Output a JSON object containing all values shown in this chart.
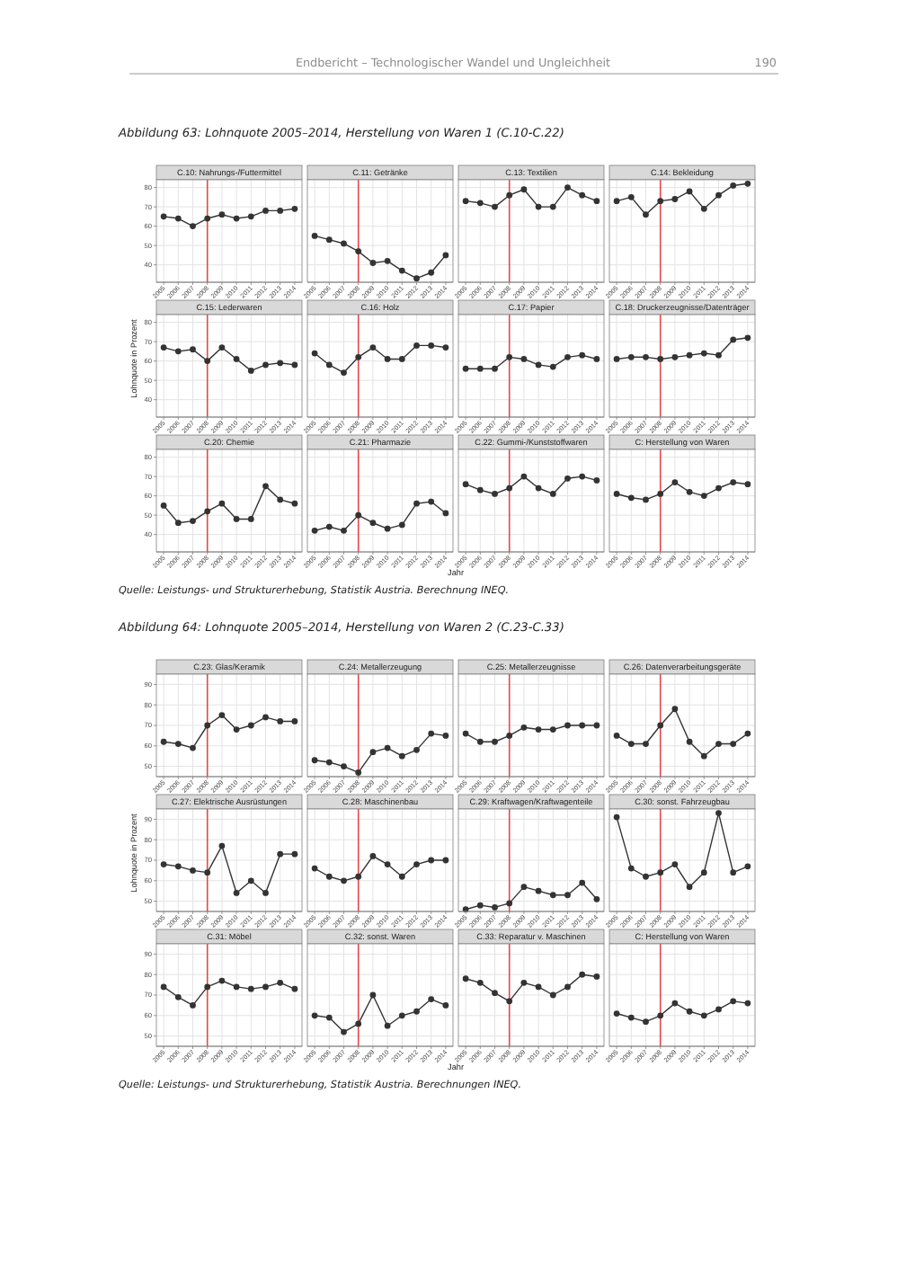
{
  "chart_data": [
    {
      "type": "line",
      "title": "C.10: Nahrungs-/Futtermittel",
      "annotations": [
        "Endbericht – Technologischer Wandel und Ungleichheit",
        "190",
        "Abbildung 63:   Lohnquote 2005–2014, Herstellung von Waren 1 (C.10-C.22)"
      ],
      "x": [
        2005,
        2006,
        2007,
        2008,
        2009,
        2010,
        2011,
        2012,
        2013,
        2014
      ],
      "values": [
        65,
        64,
        60,
        64,
        66,
        64,
        65,
        68,
        68,
        69
      ],
      "color": "#333333",
      "xlim": [
        2004.5,
        2014.5
      ],
      "xticks": [
        2005,
        2006,
        2007,
        2008,
        2009,
        2010,
        2011,
        2012,
        2013,
        2014
      ],
      "ylim": [
        31,
        84
      ],
      "yticks": [
        40,
        50,
        60,
        70,
        80
      ],
      "grid": true,
      "marker": "circle",
      "ref_lines": [
        {
          "axis": "x",
          "value": 2008,
          "color": "#e8474a"
        }
      ]
    },
    {
      "type": "line",
      "title": "C.11: Getränke",
      "x": [
        2005,
        2006,
        2007,
        2008,
        2009,
        2010,
        2011,
        2012,
        2013,
        2014
      ],
      "values": [
        55,
        53,
        51,
        47,
        41,
        42,
        37,
        33,
        36,
        45
      ],
      "color": "#333333",
      "xlim": [
        2004.5,
        2014.5
      ],
      "xticks": [
        2005,
        2006,
        2007,
        2008,
        2009,
        2010,
        2011,
        2012,
        2013,
        2014
      ],
      "ylim": [
        31,
        84
      ],
      "yticks": [
        40,
        50,
        60,
        70,
        80
      ],
      "grid": true,
      "marker": "circle",
      "tick_labels": "x",
      "ref_lines": [
        {
          "axis": "x",
          "value": 2008,
          "color": "#e8474a"
        }
      ]
    },
    {
      "type": "line",
      "title": "C.13: Textilien",
      "x": [
        2005,
        2006,
        2007,
        2008,
        2009,
        2010,
        2011,
        2012,
        2013,
        2014
      ],
      "values": [
        73,
        72,
        70,
        76,
        79,
        70,
        70,
        80,
        76,
        73
      ],
      "color": "#333333",
      "xlim": [
        2004.5,
        2014.5
      ],
      "xticks": [
        2005,
        2006,
        2007,
        2008,
        2009,
        2010,
        2011,
        2012,
        2013,
        2014
      ],
      "ylim": [
        31,
        84
      ],
      "yticks": [
        40,
        50,
        60,
        70,
        80
      ],
      "grid": true,
      "marker": "circle",
      "tick_labels": "x",
      "ref_lines": [
        {
          "axis": "x",
          "value": 2008,
          "color": "#e8474a"
        }
      ]
    },
    {
      "type": "line",
      "title": "C.14: Bekleidung",
      "x": [
        2005,
        2006,
        2007,
        2008,
        2009,
        2010,
        2011,
        2012,
        2013,
        2014
      ],
      "values": [
        73,
        75,
        66,
        73,
        74,
        78,
        69,
        76,
        81,
        82
      ],
      "color": "#333333",
      "xlim": [
        2004.5,
        2014.5
      ],
      "xticks": [
        2005,
        2006,
        2007,
        2008,
        2009,
        2010,
        2011,
        2012,
        2013,
        2014
      ],
      "ylim": [
        31,
        84
      ],
      "yticks": [
        40,
        50,
        60,
        70,
        80
      ],
      "grid": true,
      "marker": "circle",
      "tick_labels": "x",
      "ref_lines": [
        {
          "axis": "x",
          "value": 2008,
          "color": "#e8474a"
        }
      ]
    },
    {
      "type": "line",
      "title": "C.15: Lederwaren",
      "ylabel": "Lohnquote in Prozent",
      "x": [
        2005,
        2006,
        2007,
        2008,
        2009,
        2010,
        2011,
        2012,
        2013,
        2014
      ],
      "values": [
        67,
        65,
        66,
        60,
        67,
        61,
        55,
        58,
        59,
        58
      ],
      "color": "#333333",
      "xlim": [
        2004.5,
        2014.5
      ],
      "xticks": [
        2005,
        2006,
        2007,
        2008,
        2009,
        2010,
        2011,
        2012,
        2013,
        2014
      ],
      "ylim": [
        31,
        84
      ],
      "yticks": [
        40,
        50,
        60,
        70,
        80
      ],
      "grid": true,
      "marker": "circle",
      "ref_lines": [
        {
          "axis": "x",
          "value": 2008,
          "color": "#e8474a"
        }
      ]
    },
    {
      "type": "line",
      "title": "C.16: Holz",
      "x": [
        2005,
        2006,
        2007,
        2008,
        2009,
        2010,
        2011,
        2012,
        2013,
        2014
      ],
      "values": [
        64,
        58,
        54,
        62,
        67,
        61,
        61,
        68,
        68,
        67
      ],
      "color": "#333333",
      "xlim": [
        2004.5,
        2014.5
      ],
      "xticks": [
        2005,
        2006,
        2007,
        2008,
        2009,
        2010,
        2011,
        2012,
        2013,
        2014
      ],
      "ylim": [
        31,
        84
      ],
      "yticks": [
        40,
        50,
        60,
        70,
        80
      ],
      "grid": true,
      "marker": "circle",
      "tick_labels": "x",
      "ref_lines": [
        {
          "axis": "x",
          "value": 2008,
          "color": "#e8474a"
        }
      ]
    },
    {
      "type": "line",
      "title": "C.17: Papier",
      "x": [
        2005,
        2006,
        2007,
        2008,
        2009,
        2010,
        2011,
        2012,
        2013,
        2014
      ],
      "values": [
        56,
        56,
        56,
        62,
        61,
        58,
        57,
        62,
        63,
        61
      ],
      "color": "#333333",
      "xlim": [
        2004.5,
        2014.5
      ],
      "xticks": [
        2005,
        2006,
        2007,
        2008,
        2009,
        2010,
        2011,
        2012,
        2013,
        2014
      ],
      "ylim": [
        31,
        84
      ],
      "yticks": [
        40,
        50,
        60,
        70,
        80
      ],
      "grid": true,
      "marker": "circle",
      "tick_labels": "x",
      "ref_lines": [
        {
          "axis": "x",
          "value": 2008,
          "color": "#e8474a"
        }
      ]
    },
    {
      "type": "line",
      "title": "C.18: Druckerzeugnisse/Datenträger",
      "x": [
        2005,
        2006,
        2007,
        2008,
        2009,
        2010,
        2011,
        2012,
        2013,
        2014
      ],
      "values": [
        61,
        62,
        62,
        61,
        62,
        63,
        64,
        63,
        71,
        72
      ],
      "color": "#333333",
      "xlim": [
        2004.5,
        2014.5
      ],
      "xticks": [
        2005,
        2006,
        2007,
        2008,
        2009,
        2010,
        2011,
        2012,
        2013,
        2014
      ],
      "ylim": [
        31,
        84
      ],
      "yticks": [
        40,
        50,
        60,
        70,
        80
      ],
      "grid": true,
      "marker": "circle",
      "tick_labels": "x",
      "ref_lines": [
        {
          "axis": "x",
          "value": 2008,
          "color": "#e8474a"
        }
      ]
    },
    {
      "type": "line",
      "title": "C.20: Chemie",
      "x": [
        2005,
        2006,
        2007,
        2008,
        2009,
        2010,
        2011,
        2012,
        2013,
        2014
      ],
      "values": [
        55,
        46,
        47,
        52,
        56,
        48,
        48,
        65,
        58,
        56
      ],
      "color": "#333333",
      "xlim": [
        2004.5,
        2014.5
      ],
      "xticks": [
        2005,
        2006,
        2007,
        2008,
        2009,
        2010,
        2011,
        2012,
        2013,
        2014
      ],
      "ylim": [
        31,
        84
      ],
      "yticks": [
        40,
        50,
        60,
        70,
        80
      ],
      "grid": true,
      "marker": "circle",
      "ref_lines": [
        {
          "axis": "x",
          "value": 2008,
          "color": "#e8474a"
        }
      ]
    },
    {
      "type": "line",
      "title": "C.21: Pharmazie",
      "xlabel": "Jahr",
      "x": [
        2005,
        2006,
        2007,
        2008,
        2009,
        2010,
        2011,
        2012,
        2013,
        2014
      ],
      "values": [
        42,
        44,
        42,
        50,
        46,
        43,
        45,
        56,
        57,
        51
      ],
      "color": "#333333",
      "xlim": [
        2004.5,
        2014.5
      ],
      "xticks": [
        2005,
        2006,
        2007,
        2008,
        2009,
        2010,
        2011,
        2012,
        2013,
        2014
      ],
      "ylim": [
        31,
        84
      ],
      "yticks": [
        40,
        50,
        60,
        70,
        80
      ],
      "grid": true,
      "marker": "circle",
      "tick_labels": "x",
      "ref_lines": [
        {
          "axis": "x",
          "value": 2008,
          "color": "#e8474a"
        }
      ]
    },
    {
      "type": "line",
      "title": "C.22: Gummi-/Kunststoffwaren",
      "x": [
        2005,
        2006,
        2007,
        2008,
        2009,
        2010,
        2011,
        2012,
        2013,
        2014
      ],
      "values": [
        66,
        63,
        61,
        64,
        70,
        64,
        61,
        69,
        70,
        68
      ],
      "color": "#333333",
      "xlim": [
        2004.5,
        2014.5
      ],
      "xticks": [
        2005,
        2006,
        2007,
        2008,
        2009,
        2010,
        2011,
        2012,
        2013,
        2014
      ],
      "ylim": [
        31,
        84
      ],
      "yticks": [
        40,
        50,
        60,
        70,
        80
      ],
      "grid": true,
      "marker": "circle",
      "tick_labels": "x",
      "ref_lines": [
        {
          "axis": "x",
          "value": 2008,
          "color": "#e8474a"
        }
      ]
    },
    {
      "type": "line",
      "title": "C: Herstellung von Waren",
      "annotations": [
        "Quelle: Leistungs- und Strukturerhebung, Statistik Austria. Berechnung INEQ."
      ],
      "x": [
        2005,
        2006,
        2007,
        2008,
        2009,
        2010,
        2011,
        2012,
        2013,
        2014
      ],
      "values": [
        61,
        59,
        58,
        61,
        67,
        62,
        60,
        64,
        67,
        66
      ],
      "color": "#333333",
      "xlim": [
        2004.5,
        2014.5
      ],
      "xticks": [
        2005,
        2006,
        2007,
        2008,
        2009,
        2010,
        2011,
        2012,
        2013,
        2014
      ],
      "ylim": [
        31,
        84
      ],
      "yticks": [
        40,
        50,
        60,
        70,
        80
      ],
      "grid": true,
      "marker": "circle",
      "tick_labels": "x",
      "ref_lines": [
        {
          "axis": "x",
          "value": 2008,
          "color": "#e8474a"
        }
      ]
    },
    {
      "type": "line",
      "title": "C.23: Glas/Keramik",
      "annotations": [
        "Abbildung 64:   Lohnquote 2005–2014, Herstellung von Waren 2 (C.23-C.33)"
      ],
      "x": [
        2005,
        2006,
        2007,
        2008,
        2009,
        2010,
        2011,
        2012,
        2013,
        2014
      ],
      "values": [
        62,
        61,
        59,
        70,
        75,
        68,
        70,
        74,
        72,
        72
      ],
      "color": "#333333",
      "xlim": [
        2004.5,
        2014.5
      ],
      "xticks": [
        2005,
        2006,
        2007,
        2008,
        2009,
        2010,
        2011,
        2012,
        2013,
        2014
      ],
      "ylim": [
        45,
        95
      ],
      "yticks": [
        50,
        60,
        70,
        80,
        90
      ],
      "grid": true,
      "marker": "circle",
      "ref_lines": [
        {
          "axis": "x",
          "value": 2008,
          "color": "#e8474a"
        }
      ]
    },
    {
      "type": "line",
      "title": "C.24: Metallerzeugung",
      "x": [
        2005,
        2006,
        2007,
        2008,
        2009,
        2010,
        2011,
        2012,
        2013,
        2014
      ],
      "values": [
        53,
        52,
        50,
        47,
        57,
        59,
        55,
        58,
        66,
        65
      ],
      "color": "#333333",
      "xlim": [
        2004.5,
        2014.5
      ],
      "xticks": [
        2005,
        2006,
        2007,
        2008,
        2009,
        2010,
        2011,
        2012,
        2013,
        2014
      ],
      "ylim": [
        45,
        95
      ],
      "yticks": [
        50,
        60,
        70,
        80,
        90
      ],
      "grid": true,
      "marker": "circle",
      "tick_labels": "x",
      "ref_lines": [
        {
          "axis": "x",
          "value": 2008,
          "color": "#e8474a"
        }
      ]
    },
    {
      "type": "line",
      "title": "C.25: Metallerzeugnisse",
      "x": [
        2005,
        2006,
        2007,
        2008,
        2009,
        2010,
        2011,
        2012,
        2013,
        2014
      ],
      "values": [
        66,
        62,
        62,
        65,
        69,
        68,
        68,
        70,
        70,
        70
      ],
      "color": "#333333",
      "xlim": [
        2004.5,
        2014.5
      ],
      "xticks": [
        2005,
        2006,
        2007,
        2008,
        2009,
        2010,
        2011,
        2012,
        2013,
        2014
      ],
      "ylim": [
        45,
        95
      ],
      "yticks": [
        50,
        60,
        70,
        80,
        90
      ],
      "grid": true,
      "marker": "circle",
      "tick_labels": "x",
      "ref_lines": [
        {
          "axis": "x",
          "value": 2008,
          "color": "#e8474a"
        }
      ]
    },
    {
      "type": "line",
      "title": "C.26: Datenverarbeitungsgeräte",
      "x": [
        2005,
        2006,
        2007,
        2008,
        2009,
        2010,
        2011,
        2012,
        2013,
        2014
      ],
      "values": [
        65,
        61,
        61,
        70,
        78,
        62,
        55,
        61,
        61,
        66
      ],
      "color": "#333333",
      "xlim": [
        2004.5,
        2014.5
      ],
      "xticks": [
        2005,
        2006,
        2007,
        2008,
        2009,
        2010,
        2011,
        2012,
        2013,
        2014
      ],
      "ylim": [
        45,
        95
      ],
      "yticks": [
        50,
        60,
        70,
        80,
        90
      ],
      "grid": true,
      "marker": "circle",
      "tick_labels": "x",
      "ref_lines": [
        {
          "axis": "x",
          "value": 2008,
          "color": "#e8474a"
        }
      ]
    },
    {
      "type": "line",
      "title": "C.27: Elektrische Ausrüstungen",
      "ylabel": "Lohnquote in Prozent",
      "x": [
        2005,
        2006,
        2007,
        2008,
        2009,
        2010,
        2011,
        2012,
        2013,
        2014
      ],
      "values": [
        68,
        67,
        65,
        64,
        77,
        54,
        60,
        54,
        73,
        73
      ],
      "color": "#333333",
      "xlim": [
        2004.5,
        2014.5
      ],
      "xticks": [
        2005,
        2006,
        2007,
        2008,
        2009,
        2010,
        2011,
        2012,
        2013,
        2014
      ],
      "ylim": [
        45,
        95
      ],
      "yticks": [
        50,
        60,
        70,
        80,
        90
      ],
      "grid": true,
      "marker": "circle",
      "ref_lines": [
        {
          "axis": "x",
          "value": 2008,
          "color": "#e8474a"
        }
      ]
    },
    {
      "type": "line",
      "title": "C.28: Maschinenbau",
      "x": [
        2005,
        2006,
        2007,
        2008,
        2009,
        2010,
        2011,
        2012,
        2013,
        2014
      ],
      "values": [
        66,
        62,
        60,
        62,
        72,
        68,
        62,
        68,
        70,
        70
      ],
      "color": "#333333",
      "xlim": [
        2004.5,
        2014.5
      ],
      "xticks": [
        2005,
        2006,
        2007,
        2008,
        2009,
        2010,
        2011,
        2012,
        2013,
        2014
      ],
      "ylim": [
        45,
        95
      ],
      "yticks": [
        50,
        60,
        70,
        80,
        90
      ],
      "grid": true,
      "marker": "circle",
      "tick_labels": "x",
      "ref_lines": [
        {
          "axis": "x",
          "value": 2008,
          "color": "#e8474a"
        }
      ]
    },
    {
      "type": "line",
      "title": "C.29: Kraftwagen/Kraftwagenteile",
      "x": [
        2005,
        2006,
        2007,
        2008,
        2009,
        2010,
        2011,
        2012,
        2013,
        2014
      ],
      "values": [
        46,
        48,
        47,
        49,
        57,
        55,
        53,
        53,
        59,
        51
      ],
      "color": "#333333",
      "xlim": [
        2004.5,
        2014.5
      ],
      "xticks": [
        2005,
        2006,
        2007,
        2008,
        2009,
        2010,
        2011,
        2012,
        2013,
        2014
      ],
      "ylim": [
        45,
        95
      ],
      "yticks": [
        50,
        60,
        70,
        80,
        90
      ],
      "grid": true,
      "marker": "circle",
      "tick_labels": "x",
      "ref_lines": [
        {
          "axis": "x",
          "value": 2008,
          "color": "#e8474a"
        }
      ]
    },
    {
      "type": "line",
      "title": "C.30: sonst. Fahrzeugbau",
      "x": [
        2005,
        2006,
        2007,
        2008,
        2009,
        2010,
        2011,
        2012,
        2013,
        2014
      ],
      "values": [
        91,
        66,
        62,
        64,
        68,
        57,
        64,
        93,
        64,
        67
      ],
      "color": "#333333",
      "xlim": [
        2004.5,
        2014.5
      ],
      "xticks": [
        2005,
        2006,
        2007,
        2008,
        2009,
        2010,
        2011,
        2012,
        2013,
        2014
      ],
      "ylim": [
        45,
        95
      ],
      "yticks": [
        50,
        60,
        70,
        80,
        90
      ],
      "grid": true,
      "marker": "circle",
      "tick_labels": "x",
      "ref_lines": [
        {
          "axis": "x",
          "value": 2008,
          "color": "#e8474a"
        }
      ]
    },
    {
      "type": "line",
      "title": "C.31: Möbel",
      "x": [
        2005,
        2006,
        2007,
        2008,
        2009,
        2010,
        2011,
        2012,
        2013,
        2014
      ],
      "values": [
        74,
        69,
        65,
        74,
        77,
        74,
        73,
        74,
        76,
        73
      ],
      "color": "#333333",
      "xlim": [
        2004.5,
        2014.5
      ],
      "xticks": [
        2005,
        2006,
        2007,
        2008,
        2009,
        2010,
        2011,
        2012,
        2013,
        2014
      ],
      "ylim": [
        45,
        95
      ],
      "yticks": [
        50,
        60,
        70,
        80,
        90
      ],
      "grid": true,
      "marker": "circle",
      "ref_lines": [
        {
          "axis": "x",
          "value": 2008,
          "color": "#e8474a"
        }
      ]
    },
    {
      "type": "line",
      "title": "C.32: sonst. Waren",
      "xlabel": "Jahr",
      "x": [
        2005,
        2006,
        2007,
        2008,
        2009,
        2010,
        2011,
        2012,
        2013,
        2014
      ],
      "values": [
        60,
        59,
        52,
        56,
        70,
        55,
        60,
        62,
        68,
        65
      ],
      "color": "#333333",
      "xlim": [
        2004.5,
        2014.5
      ],
      "xticks": [
        2005,
        2006,
        2007,
        2008,
        2009,
        2010,
        2011,
        2012,
        2013,
        2014
      ],
      "ylim": [
        45,
        95
      ],
      "yticks": [
        50,
        60,
        70,
        80,
        90
      ],
      "grid": true,
      "marker": "circle",
      "tick_labels": "x",
      "ref_lines": [
        {
          "axis": "x",
          "value": 2008,
          "color": "#e8474a"
        }
      ]
    },
    {
      "type": "line",
      "title": "C.33: Reparatur v. Maschinen",
      "x": [
        2005,
        2006,
        2007,
        2008,
        2009,
        2010,
        2011,
        2012,
        2013,
        2014
      ],
      "values": [
        78,
        76,
        71,
        67,
        76,
        74,
        70,
        74,
        80,
        79
      ],
      "color": "#333333",
      "xlim": [
        2004.5,
        2014.5
      ],
      "xticks": [
        2005,
        2006,
        2007,
        2008,
        2009,
        2010,
        2011,
        2012,
        2013,
        2014
      ],
      "ylim": [
        45,
        95
      ],
      "yticks": [
        50,
        60,
        70,
        80,
        90
      ],
      "grid": true,
      "marker": "circle",
      "tick_labels": "x",
      "ref_lines": [
        {
          "axis": "x",
          "value": 2008,
          "color": "#e8474a"
        }
      ]
    },
    {
      "type": "line",
      "title": "C: Herstellung von Waren",
      "annotations": [
        "Quelle: Leistungs- und Strukturerhebung, Statistik Austria. Berechnungen INEQ."
      ],
      "x": [
        2005,
        2006,
        2007,
        2008,
        2009,
        2010,
        2011,
        2012,
        2013,
        2014
      ],
      "values": [
        61,
        59,
        57,
        60,
        66,
        62,
        60,
        63,
        67,
        66
      ],
      "color": "#333333",
      "xlim": [
        2004.5,
        2014.5
      ],
      "xticks": [
        2005,
        2006,
        2007,
        2008,
        2009,
        2010,
        2011,
        2012,
        2013,
        2014
      ],
      "ylim": [
        45,
        95
      ],
      "yticks": [
        50,
        60,
        70,
        80,
        90
      ],
      "grid": true,
      "marker": "circle",
      "tick_labels": "x",
      "ref_lines": [
        {
          "axis": "x",
          "value": 2008,
          "color": "#e8474a"
        }
      ]
    }
  ]
}
